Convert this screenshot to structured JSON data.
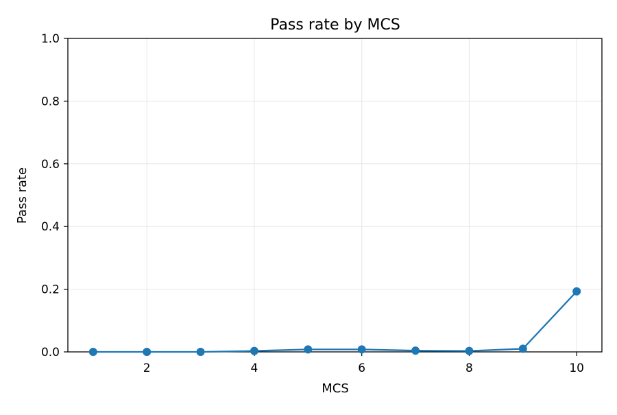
{
  "chart_data": {
    "type": "line",
    "title": "Pass rate by MCS",
    "xlabel": "MCS",
    "ylabel": "Pass rate",
    "xlim": [
      0.53,
      10.47
    ],
    "ylim": [
      0,
      1.0
    ],
    "xticks": [
      2,
      4,
      6,
      8,
      10
    ],
    "yticks": [
      0.0,
      0.2,
      0.4,
      0.6,
      0.8,
      1.0
    ],
    "xtick_labels": [
      "2",
      "4",
      "6",
      "8",
      "10"
    ],
    "ytick_labels": [
      "0.0",
      "0.2",
      "0.4",
      "0.6",
      "0.8",
      "1.0"
    ],
    "grid": true,
    "series": [
      {
        "color": "#1f77b4",
        "marker": "circle",
        "x": [
          1,
          2,
          3,
          4,
          5,
          6,
          7,
          8,
          9,
          10
        ],
        "y": [
          0.0,
          0.0,
          0.0,
          0.003,
          0.008,
          0.008,
          0.004,
          0.003,
          0.01,
          0.193
        ]
      }
    ]
  },
  "colors": {
    "line": "#1f77b4",
    "grid": "#e6e6e6",
    "axis": "#000000"
  }
}
